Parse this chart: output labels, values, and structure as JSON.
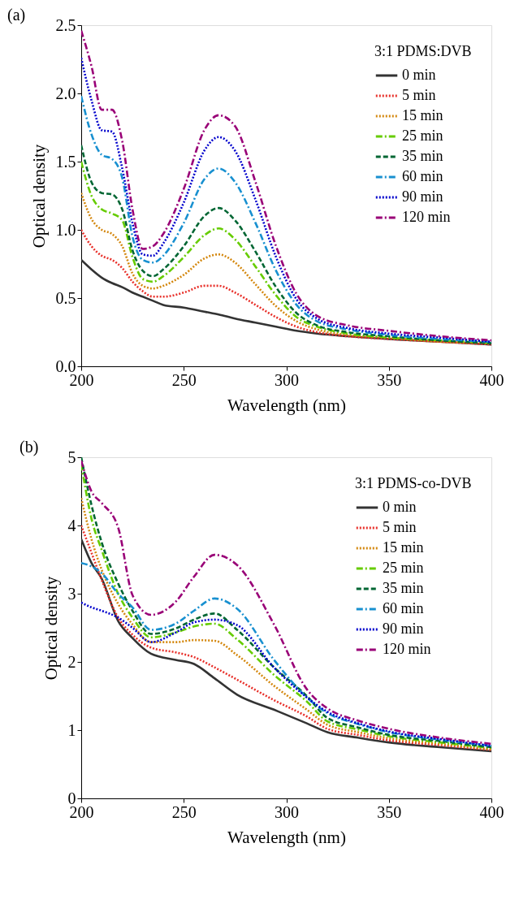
{
  "chart_data": [
    {
      "type": "line",
      "title": "(a)",
      "xlabel": "Wavelength (nm)",
      "ylabel": "Optical density",
      "legend_title": "3:1 PDMS:DVB",
      "legend": "top right",
      "grid": false,
      "x": [
        200,
        205,
        210,
        215,
        220,
        225,
        230,
        235,
        240,
        250,
        260,
        267,
        275,
        285,
        295,
        305,
        315,
        330,
        350,
        375,
        400
      ],
      "xlim": [
        200,
        400
      ],
      "xticks": [
        200,
        250,
        300,
        350,
        400
      ],
      "ylim": [
        0,
        2.5
      ],
      "yticks": [
        {
          "value": 0,
          "label": "0.0"
        },
        {
          "value": 0.5,
          "label": "0.5"
        },
        {
          "value": 1,
          "label": "1.0"
        },
        {
          "value": 1.5,
          "label": "1.5"
        },
        {
          "value": 2,
          "label": "2.0"
        },
        {
          "value": 2.5,
          "label": "2.5"
        }
      ],
      "series": [
        {
          "name": "0 min",
          "color": "#333333",
          "line_style": "solid",
          "values": [
            0.78,
            0.71,
            0.65,
            0.61,
            0.58,
            0.54,
            0.51,
            0.48,
            0.45,
            0.43,
            0.4,
            0.38,
            0.35,
            0.32,
            0.29,
            0.26,
            0.24,
            0.22,
            0.2,
            0.18,
            0.16
          ]
        },
        {
          "name": "5 min",
          "color": "#e8302a",
          "line_style": "dotted",
          "values": [
            1.0,
            0.88,
            0.81,
            0.78,
            0.72,
            0.62,
            0.55,
            0.51,
            0.51,
            0.54,
            0.59,
            0.59,
            0.54,
            0.45,
            0.36,
            0.29,
            0.25,
            0.22,
            0.2,
            0.18,
            0.16
          ]
        },
        {
          "name": "15 min",
          "color": "#d4880f",
          "line_style": "dotted",
          "values": [
            1.27,
            1.08,
            1.0,
            0.97,
            0.88,
            0.68,
            0.59,
            0.57,
            0.59,
            0.67,
            0.79,
            0.82,
            0.76,
            0.6,
            0.44,
            0.33,
            0.27,
            0.23,
            0.21,
            0.18,
            0.17
          ]
        },
        {
          "name": "25 min",
          "color": "#66cc00",
          "line_style": "dashdot",
          "values": [
            1.5,
            1.25,
            1.15,
            1.12,
            1.07,
            0.8,
            0.64,
            0.62,
            0.66,
            0.8,
            0.96,
            1.01,
            0.93,
            0.73,
            0.52,
            0.36,
            0.29,
            0.24,
            0.21,
            0.19,
            0.17
          ]
        },
        {
          "name": "35 min",
          "color": "#006633",
          "line_style": "dashed",
          "values": [
            1.62,
            1.35,
            1.27,
            1.26,
            1.15,
            0.85,
            0.7,
            0.66,
            0.71,
            0.88,
            1.1,
            1.16,
            1.07,
            0.84,
            0.58,
            0.39,
            0.3,
            0.25,
            0.22,
            0.19,
            0.17
          ]
        },
        {
          "name": "60 min",
          "color": "#1890d0",
          "line_style": "dashdot",
          "values": [
            1.98,
            1.7,
            1.55,
            1.52,
            1.38,
            0.95,
            0.78,
            0.76,
            0.81,
            1.05,
            1.37,
            1.45,
            1.35,
            1.05,
            0.7,
            0.45,
            0.33,
            0.27,
            0.23,
            0.2,
            0.18
          ]
        },
        {
          "name": "90 min",
          "color": "#0000cc",
          "line_style": "dotted",
          "values": [
            2.26,
            1.95,
            1.73,
            1.72,
            1.45,
            1.05,
            0.82,
            0.81,
            0.9,
            1.2,
            1.58,
            1.68,
            1.58,
            1.22,
            0.8,
            0.49,
            0.35,
            0.28,
            0.24,
            0.21,
            0.18
          ]
        },
        {
          "name": "120 min",
          "color": "#990077",
          "line_style": "dashdot",
          "values": [
            2.46,
            2.2,
            1.88,
            1.88,
            1.65,
            1.15,
            0.86,
            0.88,
            0.97,
            1.3,
            1.73,
            1.84,
            1.76,
            1.35,
            0.88,
            0.53,
            0.37,
            0.3,
            0.26,
            0.22,
            0.19
          ]
        }
      ]
    },
    {
      "type": "line",
      "title": "(b)",
      "xlabel": "Wavelength (nm)",
      "ylabel": "Optical density",
      "legend_title": "3:1 PDMS-co-DVB",
      "legend": "top right",
      "grid": false,
      "x": [
        200,
        205,
        210,
        218,
        225,
        234,
        246,
        255,
        265,
        276,
        294,
        310,
        320,
        335,
        350,
        375,
        400
      ],
      "xlim": [
        200,
        400
      ],
      "xticks": [
        200,
        250,
        300,
        350,
        400
      ],
      "ylim": [
        0,
        5
      ],
      "yticks": [
        0,
        1,
        2,
        3,
        4,
        5
      ],
      "series": [
        {
          "name": "0 min",
          "color": "#333333",
          "line_style": "solid",
          "values": [
            3.8,
            3.45,
            3.22,
            2.6,
            2.35,
            2.12,
            2.03,
            1.97,
            1.76,
            1.52,
            1.3,
            1.1,
            0.97,
            0.89,
            0.82,
            0.75,
            0.69
          ]
        },
        {
          "name": "5 min",
          "color": "#e8302a",
          "line_style": "dotted",
          "values": [
            4.0,
            3.6,
            3.2,
            2.65,
            2.4,
            2.21,
            2.14,
            2.07,
            1.92,
            1.74,
            1.44,
            1.2,
            1.02,
            0.93,
            0.85,
            0.78,
            0.71
          ]
        },
        {
          "name": "15 min",
          "color": "#d4880f",
          "line_style": "dotted",
          "values": [
            4.4,
            3.8,
            3.35,
            2.85,
            2.55,
            2.29,
            2.29,
            2.32,
            2.31,
            2.1,
            1.65,
            1.3,
            1.08,
            0.97,
            0.88,
            0.8,
            0.72
          ]
        },
        {
          "name": "25 min",
          "color": "#66cc00",
          "line_style": "dashdot",
          "values": [
            4.9,
            4.1,
            3.64,
            3.0,
            2.65,
            2.36,
            2.43,
            2.52,
            2.56,
            2.33,
            1.81,
            1.42,
            1.13,
            1.01,
            0.91,
            0.82,
            0.74
          ]
        },
        {
          "name": "35 min",
          "color": "#006633",
          "line_style": "dashed",
          "values": [
            5.0,
            4.3,
            3.75,
            3.15,
            2.75,
            2.41,
            2.49,
            2.62,
            2.71,
            2.47,
            1.92,
            1.5,
            1.18,
            1.04,
            0.93,
            0.84,
            0.75
          ]
        },
        {
          "name": "60 min",
          "color": "#1890d0",
          "line_style": "dashdot",
          "values": [
            3.45,
            3.4,
            3.3,
            3.0,
            2.8,
            2.47,
            2.56,
            2.75,
            2.93,
            2.78,
            2.03,
            1.48,
            1.25,
            1.09,
            0.97,
            0.86,
            0.77
          ]
        },
        {
          "name": "90 min",
          "color": "#0000cc",
          "line_style": "dotted",
          "values": [
            2.87,
            2.8,
            2.75,
            2.65,
            2.5,
            2.29,
            2.43,
            2.58,
            2.62,
            2.54,
            1.92,
            1.48,
            1.27,
            1.1,
            0.98,
            0.87,
            0.77
          ]
        },
        {
          "name": "120 min",
          "color": "#990077",
          "line_style": "dashdot",
          "values": [
            4.95,
            4.5,
            4.33,
            3.97,
            2.98,
            2.69,
            2.88,
            3.25,
            3.57,
            3.42,
            2.55,
            1.6,
            1.32,
            1.14,
            1.02,
            0.89,
            0.8
          ]
        }
      ]
    }
  ]
}
